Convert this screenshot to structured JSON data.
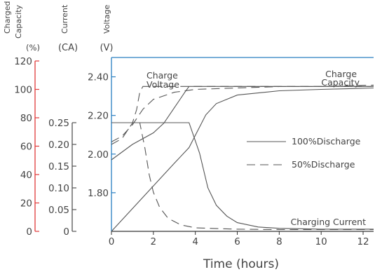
{
  "chart_data": {
    "type": "line",
    "xlabel": "Time (hours)",
    "x_ticks": [
      "0",
      "2",
      "4",
      "6",
      "8",
      "10",
      "12"
    ],
    "xlim": [
      0,
      12.5
    ],
    "axes": [
      {
        "id": "capacity",
        "title_lines": [
          "Charged",
          "Capacity"
        ],
        "unit": "(%)",
        "color": "#e03a3a",
        "range": [
          0,
          120
        ],
        "ticks": [
          0,
          20,
          40,
          60,
          80,
          100,
          120
        ],
        "tick_labels": [
          "0",
          "20",
          "40",
          "60",
          "80",
          "100",
          "120"
        ]
      },
      {
        "id": "current",
        "title_lines": [
          "Current"
        ],
        "unit": "(CA)",
        "color": "#555555",
        "range": [
          0,
          0.25
        ],
        "ticks": [
          0,
          0.05,
          0.1,
          0.15,
          0.2,
          0.25
        ],
        "tick_labels": [
          "0",
          "0.05",
          "0.10",
          "0.15",
          "0.20",
          "0.25"
        ]
      },
      {
        "id": "voltage",
        "title_lines": [
          "Voltage"
        ],
        "unit": "(V)",
        "color": "#2a7fc1",
        "range": [
          1.6,
          2.5
        ],
        "ticks": [
          1.8,
          2.0,
          2.2,
          2.4
        ],
        "tick_labels": [
          "1.80",
          "2.00",
          "2.20",
          "2.40"
        ]
      }
    ],
    "annotations": [
      {
        "lines": [
          "Charge",
          "Voltage"
        ]
      },
      {
        "lines": [
          "Charge",
          "Capacity"
        ]
      },
      {
        "lines": [
          "Charging Current"
        ]
      }
    ],
    "legend": {
      "position": "right",
      "items": [
        {
          "label": "100%Discharge",
          "dash": "solid"
        },
        {
          "label": "50%Discharge",
          "dash": "dashed"
        }
      ]
    },
    "series": [
      {
        "group": "Charge Voltage",
        "discharge": "100%",
        "dash": "solid",
        "axis": "voltage",
        "x": [
          0,
          1,
          2,
          2.5,
          3,
          3.5,
          3.7,
          4,
          6,
          12.5
        ],
        "y": [
          1.97,
          2.05,
          2.11,
          2.16,
          2.24,
          2.32,
          2.35,
          2.35,
          2.35,
          2.35
        ]
      },
      {
        "group": "Charge Voltage",
        "discharge": "50%",
        "dash": "dashed",
        "axis": "voltage",
        "x": [
          0,
          0.5,
          1,
          1.2,
          1.35,
          1.5,
          4,
          12.5
        ],
        "y": [
          2.05,
          2.08,
          2.16,
          2.23,
          2.32,
          2.35,
          2.35,
          2.35
        ]
      },
      {
        "group": "Charge Capacity",
        "discharge": "100%",
        "dash": "solid",
        "axis": "capacity",
        "x": [
          0,
          1,
          2,
          3,
          3.7,
          4.5,
          5,
          6,
          8,
          10,
          12.5
        ],
        "y": [
          0,
          16,
          32,
          48,
          59,
          82,
          90,
          96,
          99,
          100,
          101
        ]
      },
      {
        "group": "Charge Capacity",
        "discharge": "50%",
        "dash": "dashed",
        "axis": "capacity",
        "x": [
          0,
          0.5,
          1,
          1.5,
          2,
          3,
          4,
          6,
          8,
          10,
          12.5
        ],
        "y": [
          63,
          67,
          75,
          86,
          93,
          98,
          100,
          101,
          102,
          102,
          103
        ]
      },
      {
        "group": "Charging Current",
        "discharge": "100%",
        "dash": "solid",
        "axis": "current",
        "x": [
          0,
          3.7,
          4.2,
          4.6,
          5,
          5.5,
          6,
          7,
          8,
          10,
          12.5
        ],
        "y": [
          0.25,
          0.25,
          0.18,
          0.1,
          0.06,
          0.035,
          0.02,
          0.01,
          0.007,
          0.005,
          0.005
        ]
      },
      {
        "group": "Charging Current",
        "discharge": "50%",
        "dash": "dashed",
        "axis": "current",
        "x": [
          0,
          1.35,
          1.6,
          1.8,
          2,
          2.3,
          2.7,
          3.3,
          4,
          6,
          8,
          12.5
        ],
        "y": [
          0.25,
          0.25,
          0.19,
          0.13,
          0.09,
          0.055,
          0.03,
          0.015,
          0.008,
          0.005,
          0.004,
          0.004
        ]
      }
    ]
  }
}
